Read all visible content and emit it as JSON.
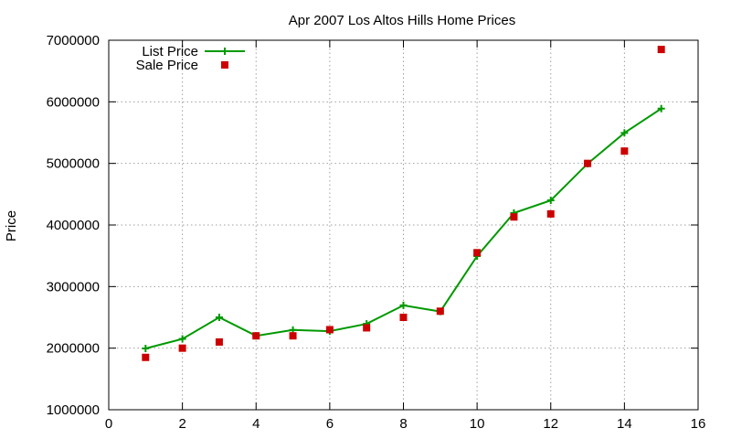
{
  "chart_data": {
    "type": "line",
    "title": "Apr 2007 Los Altos Hills Home Prices",
    "xlabel": "",
    "ylabel": "Price",
    "xlim": [
      0,
      16
    ],
    "ylim": [
      1000000,
      7000000
    ],
    "xticks": [
      0,
      2,
      4,
      6,
      8,
      10,
      12,
      14,
      16
    ],
    "yticks": [
      1000000,
      2000000,
      3000000,
      4000000,
      5000000,
      6000000,
      7000000
    ],
    "grid": true,
    "legend_position": "top-left",
    "series": [
      {
        "name": "List Price",
        "style": "line-with-plus",
        "color": "#009900",
        "x": [
          1,
          2,
          3,
          4,
          5,
          6,
          7,
          8,
          9,
          10,
          11,
          12,
          13,
          14,
          15
        ],
        "values": [
          1995000,
          2150000,
          2500000,
          2200000,
          2295000,
          2275000,
          2395000,
          2695000,
          2595000,
          3495000,
          4195000,
          4400000,
          4995000,
          5495000,
          5890000
        ]
      },
      {
        "name": "Sale Price",
        "style": "square-points",
        "color": "#cc0000",
        "x": [
          1,
          2,
          3,
          4,
          5,
          6,
          7,
          8,
          9,
          10,
          11,
          12,
          13,
          14,
          15
        ],
        "values": [
          1850000,
          2000000,
          2100000,
          2200000,
          2200000,
          2300000,
          2330000,
          2500000,
          2600000,
          3550000,
          4130000,
          4180000,
          5000000,
          5200000,
          6850000
        ]
      }
    ]
  }
}
